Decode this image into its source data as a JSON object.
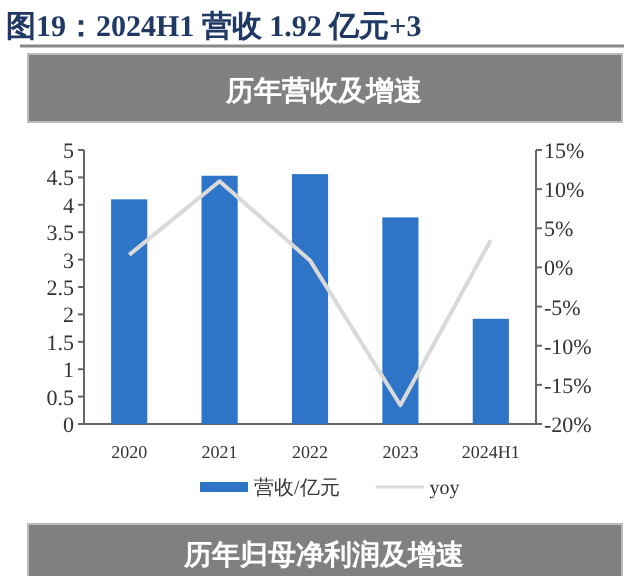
{
  "chart_data": {
    "type": "bar",
    "title": "图19：2024H1 营收 1.92 亿元+3",
    "subtitle": "历年营收及增速",
    "categories": [
      "2020",
      "2021",
      "2022",
      "2023",
      "2024H1"
    ],
    "series": [
      {
        "name": "营收/亿元",
        "color": "#2e75c8",
        "values": [
          4.1,
          4.53,
          4.56,
          3.77,
          1.92
        ]
      },
      {
        "name": "yoy",
        "type": "line",
        "axis": "y2",
        "color": "#d9d9d9",
        "values": [
          1.6,
          11,
          0.9,
          -17.6,
          3.5
        ]
      }
    ],
    "ylim": [
      0,
      5
    ],
    "yticks": [
      0,
      0.5,
      1,
      1.5,
      2,
      2.5,
      3,
      3.5,
      4,
      4.5,
      5
    ],
    "y2lim": [
      -20,
      15
    ],
    "y2ticks": [
      {
        "value": -20,
        "label": "-20%"
      },
      {
        "value": -15,
        "label": "-15%"
      },
      {
        "value": -10,
        "label": "-10%"
      },
      {
        "value": -5,
        "label": "-5%"
      },
      {
        "value": 0,
        "label": "0%"
      },
      {
        "value": 5,
        "label": "5%"
      },
      {
        "value": 10,
        "label": "10%"
      },
      {
        "value": 15,
        "label": "15%"
      }
    ],
    "legend": "bottom",
    "grid": false,
    "annotations": [
      "历年归母净利润及增速"
    ]
  }
}
